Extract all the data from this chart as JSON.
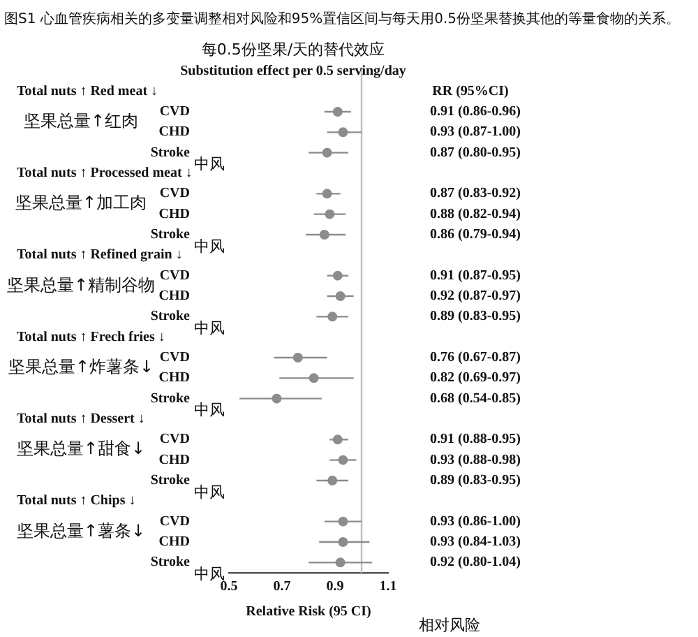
{
  "chart_data": {
    "type": "scatter",
    "orientation": "horizontal",
    "title": "图S1 心血管疾病相关的多变量调整相对风险和95%置信区间与每天用0.5份坚果替换其他的等量食物的关系。",
    "subtitle": "每0.5份坚果/天的替代效应\nSubstitution effect per 0.5 serving/day",
    "xlabel": "Relative Risk (95 CI)",
    "categories": [
      null,
      "CVD",
      "CHD",
      "Stroke",
      null,
      "CVD",
      "CHD",
      "Stroke",
      null,
      "CVD",
      "CHD",
      "Stroke",
      null,
      "CVD",
      "CHD",
      "Stroke",
      null,
      "CVD",
      "CHD",
      "Stroke",
      null,
      "CVD",
      "CHD",
      "Stroke"
    ],
    "values": [
      null,
      0.91,
      0.93,
      0.87,
      null,
      0.87,
      0.88,
      0.86,
      null,
      0.91,
      0.92,
      0.89,
      null,
      0.76,
      0.82,
      0.68,
      null,
      0.91,
      0.93,
      0.89,
      null,
      0.93,
      0.93,
      0.92
    ],
    "errors": [
      null,
      [
        0.86,
        0.96
      ],
      [
        0.87,
        1.0
      ],
      [
        0.8,
        0.95
      ],
      null,
      [
        0.83,
        0.92
      ],
      [
        0.82,
        0.94
      ],
      [
        0.79,
        0.94
      ],
      null,
      [
        0.87,
        0.95
      ],
      [
        0.87,
        0.97
      ],
      [
        0.83,
        0.95
      ],
      null,
      [
        0.67,
        0.87
      ],
      [
        0.69,
        0.97
      ],
      [
        0.54,
        0.85
      ],
      null,
      [
        0.88,
        0.95
      ],
      [
        0.88,
        0.98
      ],
      [
        0.83,
        0.95
      ],
      null,
      [
        0.86,
        1.0
      ],
      [
        0.84,
        1.03
      ],
      [
        0.8,
        1.04
      ]
    ],
    "value_labels": [
      null,
      "0.91 (0.86-0.96)",
      "0.93 (0.87-1.00)",
      "0.87 (0.80-0.95)",
      null,
      "0.87 (0.83-0.92)",
      "0.88 (0.82-0.94)",
      "0.86 (0.79-0.94)",
      null,
      "0.91 (0.87-0.95)",
      "0.92 (0.87-0.97)",
      "0.89 (0.83-0.95)",
      null,
      "0.76 (0.67-0.87)",
      "0.82 (0.69-0.97)",
      "0.68 (0.54-0.85)",
      null,
      "0.91 (0.88-0.95)",
      "0.93 (0.88-0.98)",
      "0.89 (0.83-0.95)",
      null,
      "0.93 (0.86-1.00)",
      "0.93 (0.84-1.03)",
      "0.92 (0.80-1.04)"
    ],
    "color": "#8c8c8c",
    "marker": "circle",
    "xlim": [
      0.5,
      1.1
    ],
    "xticks": [
      0.5,
      0.7,
      0.9,
      1.1
    ],
    "ref_lines": [
      {
        "axis": "x",
        "value": 1,
        "color": "#bdbdbd"
      }
    ],
    "annotations": [
      "RR (95%CI)",
      "Total nuts ↑ Red meat ↓",
      "Total nuts ↑ Processed meat ↓",
      "Total nuts ↑ Refined grain ↓",
      "Total nuts ↑ Frech fries ↓",
      "Total nuts ↑ Dessert ↓",
      "Total nuts ↑ Chips ↓",
      "坚果总量↑红肉",
      "坚果总量↑加工肉",
      "坚果总量↑精制谷物",
      "坚果总量↑炸薯条↓",
      "坚果总量↑甜食↓",
      "坚果总量↑薯条↓",
      "中风",
      "中风",
      "中风",
      "中风",
      "中风",
      "中风",
      "相对风险"
    ]
  }
}
